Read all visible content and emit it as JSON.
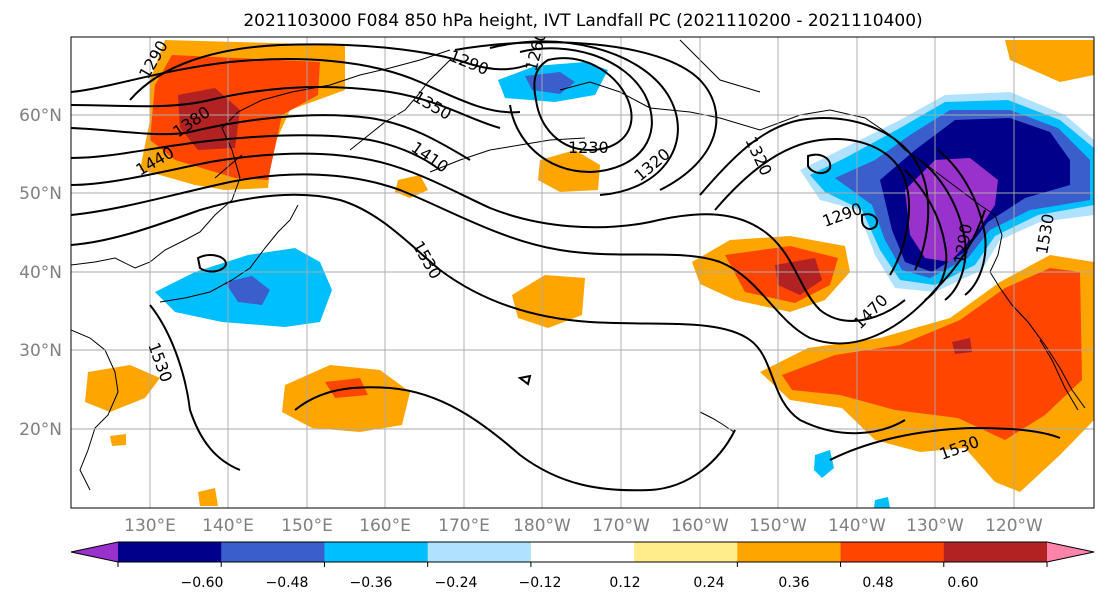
{
  "title": "2021103000 F084 850 hPa height, IVT Landfall PC (2021110200 - 2021110400)",
  "map": {
    "lat_labels": [
      "60°N",
      "50°N",
      "40°N",
      "30°N",
      "20°N"
    ],
    "lon_labels": [
      "130°E",
      "140°E",
      "150°E",
      "160°E",
      "170°E",
      "180°W",
      "170°W",
      "160°W",
      "150°W",
      "140°W",
      "130°W",
      "120°W"
    ],
    "grid": true,
    "contour_labels": [
      "1290",
      "1380",
      "1440",
      "1290",
      "1260",
      "1350",
      "1410",
      "1230",
      "1320",
      "1320",
      "1290",
      "1530",
      "1530",
      "1470",
      "1290",
      "1530",
      "1530"
    ]
  },
  "colorbar": {
    "ticks": [
      "−0.60",
      "−0.48",
      "−0.36",
      "−0.24",
      "−0.12",
      "0.12",
      "0.24",
      "0.36",
      "0.48",
      "0.60"
    ],
    "colors": [
      "#9932cc",
      "#00008b",
      "#3a5fcd",
      "#00bfff",
      "#b0e2ff",
      "#ffffff",
      "#ffec8b",
      "#ffa500",
      "#ff4500",
      "#b22222",
      "#ff82ab"
    ]
  },
  "palette": {
    "purple": "#9932cc",
    "navy": "#00008b",
    "blue": "#3a5fcd",
    "cyan": "#00bfff",
    "lightblue": "#b0e2ff",
    "yellow": "#ffec8b",
    "orange": "#ffa500",
    "redorange": "#ff4500",
    "darkred": "#b22222",
    "pink": "#ff82ab"
  }
}
